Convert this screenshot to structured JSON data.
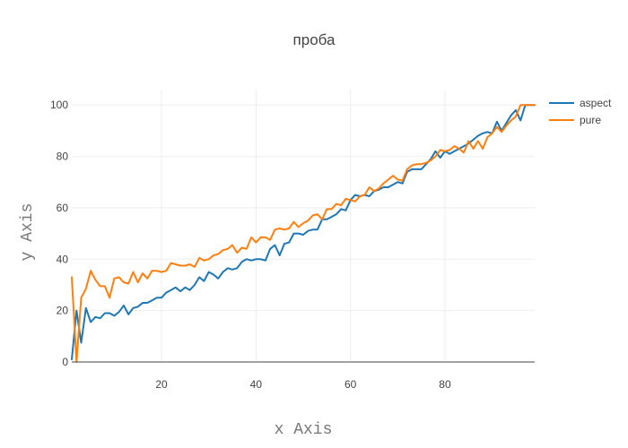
{
  "chart_data": {
    "type": "line",
    "title": "проба",
    "xlabel": "x Axis",
    "ylabel": "y Axis",
    "xlim": [
      1,
      99
    ],
    "ylim": [
      0,
      106
    ],
    "x_ticks": [
      20,
      40,
      60,
      80
    ],
    "y_ticks": [
      0,
      20,
      40,
      60,
      80,
      100
    ],
    "grid": true,
    "legend_position": "top-right",
    "series": [
      {
        "name": "aspect",
        "color": "#1f77b4",
        "x": [
          1,
          2,
          3,
          4,
          5,
          6,
          7,
          8,
          9,
          10,
          11,
          12,
          13,
          14,
          15,
          16,
          17,
          18,
          19,
          20,
          21,
          22,
          23,
          24,
          25,
          26,
          27,
          28,
          29,
          30,
          31,
          32,
          33,
          34,
          35,
          36,
          37,
          38,
          39,
          40,
          41,
          42,
          43,
          44,
          45,
          46,
          47,
          48,
          49,
          50,
          51,
          52,
          53,
          54,
          55,
          56,
          57,
          58,
          59,
          60,
          61,
          62,
          63,
          64,
          65,
          66,
          67,
          68,
          69,
          70,
          71,
          72,
          73,
          74,
          75,
          76,
          77,
          78,
          79,
          80,
          81,
          82,
          83,
          84,
          85,
          86,
          87,
          88,
          89,
          90,
          91,
          92,
          93,
          94,
          95,
          96,
          97,
          98,
          99
        ],
        "y": [
          1,
          20,
          7.5,
          21,
          15.5,
          17.5,
          17,
          19,
          19,
          18,
          19.5,
          22,
          18.5,
          21,
          21.5,
          23,
          23,
          24,
          25,
          25,
          27,
          28,
          29,
          27.5,
          29,
          28,
          30,
          33,
          31.5,
          35,
          34,
          32.5,
          35,
          36.5,
          36,
          36.5,
          39,
          40,
          39.5,
          40,
          40,
          39.5,
          44,
          45.5,
          41.5,
          46,
          46.5,
          50,
          50,
          49.5,
          51,
          51.5,
          51.5,
          55.5,
          55.5,
          56.5,
          57.5,
          59.5,
          59,
          63,
          65,
          64.5,
          65,
          64.5,
          66.5,
          67,
          68,
          68,
          69,
          70,
          69.5,
          74,
          75,
          75,
          75,
          77,
          79,
          82,
          79.5,
          82,
          81,
          82,
          83,
          84,
          85,
          86.5,
          88,
          89,
          89.5,
          89,
          93.5,
          90,
          93,
          96,
          98,
          94,
          100,
          100,
          100
        ]
      },
      {
        "name": "pure",
        "color": "#ff7f0e",
        "x": [
          1,
          2,
          3,
          4,
          5,
          6,
          7,
          8,
          9,
          10,
          11,
          12,
          13,
          14,
          15,
          16,
          17,
          18,
          19,
          20,
          21,
          22,
          23,
          24,
          25,
          26,
          27,
          28,
          29,
          30,
          31,
          32,
          33,
          34,
          35,
          36,
          37,
          38,
          39,
          40,
          41,
          42,
          43,
          44,
          45,
          46,
          47,
          48,
          49,
          50,
          51,
          52,
          53,
          54,
          55,
          56,
          57,
          58,
          59,
          60,
          61,
          62,
          63,
          64,
          65,
          66,
          67,
          68,
          69,
          70,
          71,
          72,
          73,
          74,
          75,
          76,
          77,
          78,
          79,
          80,
          81,
          82,
          83,
          84,
          85,
          86,
          87,
          88,
          89,
          90,
          91,
          92,
          93,
          94,
          95,
          96,
          97,
          98,
          99
        ],
        "y": [
          33,
          0,
          25,
          28.5,
          35.5,
          32,
          29.5,
          29.5,
          25,
          32.5,
          33,
          31,
          30.5,
          35,
          31,
          34.5,
          32.5,
          35.5,
          35.5,
          35,
          35.5,
          38.5,
          38,
          37.5,
          37.5,
          38,
          37,
          40.5,
          39.5,
          40,
          41.5,
          42,
          43.5,
          44,
          45.5,
          42.5,
          44.5,
          44,
          48.5,
          46.5,
          48.5,
          48.5,
          47.5,
          51.5,
          52,
          51.5,
          52,
          54.5,
          52.5,
          54,
          55,
          57,
          57.5,
          55.5,
          59.5,
          59.5,
          61.5,
          61,
          63.5,
          63,
          62.5,
          64.5,
          65,
          68,
          66.5,
          67.5,
          69.5,
          71,
          72.5,
          71,
          70.5,
          75,
          76.5,
          77,
          77,
          77.5,
          78.5,
          80,
          82.5,
          82,
          82.5,
          84,
          83,
          81.5,
          86,
          83,
          86,
          83,
          87.5,
          89,
          91.5,
          89.5,
          92,
          94,
          95.5,
          100,
          100,
          100,
          100
        ]
      }
    ]
  }
}
